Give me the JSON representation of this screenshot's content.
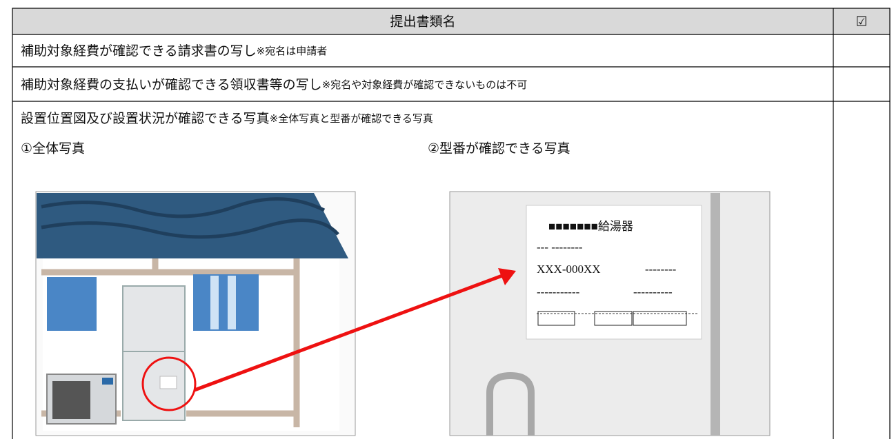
{
  "header": {
    "title": "提出書類名",
    "check": "☑"
  },
  "rows": [
    {
      "text": "補助対象経費が確認できる請求書の写し",
      "note": "※宛名は申請者"
    },
    {
      "text": "補助対象経費の支払いが確認できる領収書等の写し",
      "note": "※宛名や対象経費が確認できないものは不可"
    },
    {
      "text": "設置位置図及び設置状況が確認できる写真",
      "note": "※全体写真と型番が確認できる写真"
    }
  ],
  "photos": [
    {
      "caption": "①全体写真"
    },
    {
      "caption": "②型番が確認できる写真",
      "label_lines": [
        "■■■■■■■給湯器",
        "--- --------",
        "XXX-000XX",
        "--------",
        "-----------",
        "----------"
      ]
    }
  ]
}
